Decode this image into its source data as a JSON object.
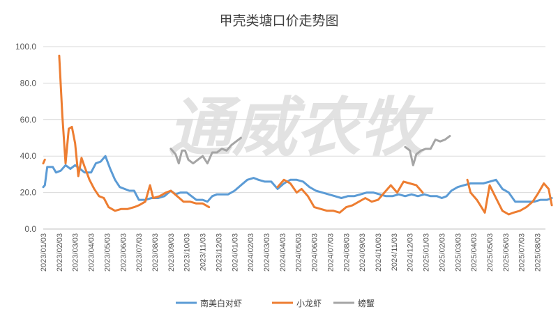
{
  "chart_data": {
    "type": "line",
    "title": "甲壳类塘口价走势图",
    "watermark": "通威农牧",
    "xlabel": "",
    "ylabel": "",
    "ylim": [
      0,
      100
    ],
    "yticks": [
      "0.0",
      "20.0",
      "40.0",
      "60.0",
      "80.0",
      "100.0"
    ],
    "grid": true,
    "legend_position": "bottom",
    "x_tick_labels": [
      "2023/01/03",
      "2023/02/03",
      "2023/03/03",
      "2023/04/03",
      "2023/05/03",
      "2023/06/03",
      "2023/07/03",
      "2023/08/03",
      "2023/09/03",
      "2023/10/03",
      "2023/11/03",
      "2023/12/03",
      "2024/01/03",
      "2024/02/03",
      "2024/03/03",
      "2024/04/03",
      "2024/05/03",
      "2024/06/03",
      "2024/07/03",
      "2024/08/03",
      "2024/09/03",
      "2024/10/03",
      "2024/11/03",
      "2024/12/03",
      "2025/01/03",
      "2025/02/03",
      "2025/03/03",
      "2025/04/03",
      "2025/05/03",
      "2025/06/03",
      "2025/07/03",
      "2025/08/03"
    ],
    "series": [
      {
        "name": "南美白对虾",
        "color": "#5b9bd5",
        "points": [
          [
            0.0,
            23
          ],
          [
            0.1,
            24
          ],
          [
            0.25,
            34
          ],
          [
            0.6,
            34
          ],
          [
            0.8,
            31
          ],
          [
            1.1,
            32
          ],
          [
            1.4,
            35
          ],
          [
            1.7,
            33
          ],
          [
            2.0,
            35
          ],
          [
            2.3,
            33
          ],
          [
            2.6,
            31
          ],
          [
            3.0,
            31
          ],
          [
            3.3,
            36
          ],
          [
            3.6,
            37
          ],
          [
            3.9,
            40
          ],
          [
            4.2,
            33
          ],
          [
            4.5,
            27
          ],
          [
            4.8,
            23
          ],
          [
            5.1,
            22
          ],
          [
            5.4,
            21
          ],
          [
            5.7,
            21
          ],
          [
            6.0,
            16
          ],
          [
            6.4,
            16
          ],
          [
            6.8,
            17
          ],
          [
            7.2,
            17
          ],
          [
            7.6,
            18
          ],
          [
            8.0,
            21
          ],
          [
            8.3,
            19
          ],
          [
            8.6,
            20
          ],
          [
            9.0,
            20
          ],
          [
            9.3,
            18
          ],
          [
            9.6,
            16
          ],
          [
            10.0,
            16
          ],
          [
            10.3,
            15
          ],
          [
            10.6,
            18
          ],
          [
            10.9,
            19
          ],
          [
            11.2,
            19
          ],
          [
            11.6,
            19
          ],
          [
            12.0,
            21
          ],
          [
            12.4,
            24
          ],
          [
            12.8,
            27
          ],
          [
            13.2,
            28
          ],
          [
            13.5,
            27
          ],
          [
            13.9,
            26
          ],
          [
            14.3,
            26
          ],
          [
            14.7,
            22
          ],
          [
            15.1,
            25
          ],
          [
            15.5,
            27
          ],
          [
            15.9,
            27
          ],
          [
            16.3,
            26
          ],
          [
            16.7,
            23
          ],
          [
            17.1,
            21
          ],
          [
            17.5,
            20
          ],
          [
            17.9,
            19
          ],
          [
            18.3,
            18
          ],
          [
            18.7,
            17
          ],
          [
            19.1,
            18
          ],
          [
            19.5,
            18
          ],
          [
            19.9,
            19
          ],
          [
            20.3,
            20
          ],
          [
            20.7,
            20
          ],
          [
            21.1,
            19
          ],
          [
            21.5,
            18
          ],
          [
            21.9,
            18
          ],
          [
            22.3,
            19
          ],
          [
            22.7,
            18
          ],
          [
            23.1,
            19
          ],
          [
            23.5,
            18
          ],
          [
            23.9,
            19
          ],
          [
            24.3,
            18
          ],
          [
            24.7,
            18
          ],
          [
            25.0,
            17
          ],
          [
            25.3,
            18
          ],
          [
            25.6,
            21
          ],
          [
            26.0,
            23
          ],
          [
            26.4,
            24
          ],
          [
            26.8,
            25
          ],
          [
            27.2,
            25
          ],
          [
            27.6,
            25
          ],
          [
            28.0,
            26
          ],
          [
            28.4,
            27
          ],
          [
            28.8,
            22
          ],
          [
            29.2,
            20
          ],
          [
            29.6,
            15
          ],
          [
            30.0,
            15
          ],
          [
            30.4,
            15
          ],
          [
            30.8,
            15
          ],
          [
            31.2,
            16
          ],
          [
            31.6,
            16
          ],
          [
            31.9,
            17
          ]
        ]
      },
      {
        "name": "小龙虾",
        "color": "#ed7d31",
        "segments": [
          [
            [
              0.0,
              36
            ],
            [
              0.1,
              38
            ]
          ],
          [
            [
              1.0,
              95
            ],
            [
              1.2,
              62
            ],
            [
              1.4,
              36
            ],
            [
              1.6,
              55
            ],
            [
              1.8,
              56
            ],
            [
              2.0,
              47
            ],
            [
              2.2,
              29
            ],
            [
              2.4,
              39
            ],
            [
              2.6,
              34
            ],
            [
              2.9,
              27
            ],
            [
              3.2,
              22
            ],
            [
              3.5,
              18
            ],
            [
              3.8,
              17
            ],
            [
              4.1,
              12
            ],
            [
              4.5,
              10
            ],
            [
              4.9,
              11
            ],
            [
              5.3,
              11
            ],
            [
              5.7,
              12
            ],
            [
              6.0,
              13
            ],
            [
              6.4,
              15
            ],
            [
              6.7,
              24
            ],
            [
              6.9,
              17
            ],
            [
              7.3,
              18
            ],
            [
              7.7,
              20
            ],
            [
              8.0,
              21
            ],
            [
              8.4,
              18
            ],
            [
              8.8,
              15
            ],
            [
              9.2,
              15
            ],
            [
              9.6,
              14
            ],
            [
              10.0,
              14
            ],
            [
              10.4,
              12
            ]
          ],
          [
            [
              14.7,
              23
            ],
            [
              15.1,
              27
            ],
            [
              15.5,
              25
            ],
            [
              15.9,
              20
            ],
            [
              16.2,
              22
            ],
            [
              16.6,
              18
            ],
            [
              17.0,
              12
            ],
            [
              17.4,
              11
            ],
            [
              17.8,
              10
            ],
            [
              18.2,
              10
            ],
            [
              18.6,
              9
            ],
            [
              19.0,
              12
            ],
            [
              19.4,
              13
            ],
            [
              19.8,
              15
            ],
            [
              20.2,
              17
            ],
            [
              20.6,
              15
            ],
            [
              21.0,
              16
            ],
            [
              21.4,
              20
            ],
            [
              21.8,
              24
            ],
            [
              22.2,
              20
            ],
            [
              22.6,
              26
            ],
            [
              23.0,
              25
            ],
            [
              23.4,
              24
            ],
            [
              23.8,
              20
            ]
          ],
          [
            [
              26.6,
              27
            ],
            [
              26.8,
              20
            ],
            [
              27.2,
              16
            ],
            [
              27.7,
              9
            ],
            [
              28.0,
              24
            ],
            [
              28.4,
              17
            ],
            [
              28.8,
              10
            ],
            [
              29.2,
              8
            ],
            [
              29.5,
              9
            ],
            [
              29.9,
              10
            ],
            [
              30.3,
              12
            ],
            [
              30.7,
              15
            ],
            [
              31.0,
              19
            ],
            [
              31.4,
              25
            ],
            [
              31.7,
              22
            ],
            [
              31.9,
              13
            ]
          ]
        ]
      },
      {
        "name": "螃蟹",
        "color": "#a5a5a5",
        "segments": [
          [
            [
              8.0,
              44
            ],
            [
              8.3,
              41
            ],
            [
              8.5,
              36
            ],
            [
              8.7,
              43
            ],
            [
              8.9,
              43
            ],
            [
              9.1,
              38
            ],
            [
              9.4,
              36
            ],
            [
              9.7,
              38
            ],
            [
              10.0,
              40
            ],
            [
              10.3,
              36
            ],
            [
              10.6,
              42
            ],
            [
              10.9,
              42
            ],
            [
              11.2,
              44
            ],
            [
              11.5,
              43
            ],
            [
              11.8,
              46
            ],
            [
              12.1,
              48
            ],
            [
              12.4,
              50
            ]
          ],
          [
            [
              22.7,
              45
            ],
            [
              23.0,
              43
            ],
            [
              23.2,
              35
            ],
            [
              23.4,
              41
            ],
            [
              23.7,
              43
            ],
            [
              24.0,
              44
            ],
            [
              24.3,
              44
            ],
            [
              24.6,
              49
            ],
            [
              24.9,
              48
            ],
            [
              25.2,
              49
            ],
            [
              25.5,
              51
            ]
          ]
        ]
      }
    ]
  }
}
